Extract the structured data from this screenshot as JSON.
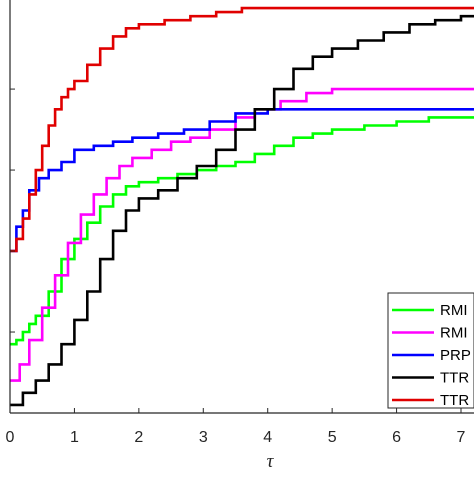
{
  "chart_data": {
    "type": "line",
    "xlabel": "τ",
    "ylabel": "",
    "title": "",
    "xlim": [
      0,
      7.3
    ],
    "ylim": [
      0,
      1.02
    ],
    "x_ticks": [
      0,
      1,
      2,
      3,
      4,
      5,
      6,
      7
    ],
    "x_tick_labels": [
      "0",
      "1",
      "2",
      "3",
      "4",
      "5",
      "6",
      "7"
    ],
    "y_ticks": [
      0.2,
      0.4,
      0.6,
      0.8
    ],
    "grid": false,
    "legend_position": "bottom-right",
    "series": [
      {
        "name": "RMI",
        "color": "#00ff00",
        "points": [
          [
            0,
            0.17
          ],
          [
            0.1,
            0.18
          ],
          [
            0.2,
            0.2
          ],
          [
            0.3,
            0.22
          ],
          [
            0.4,
            0.24
          ],
          [
            0.6,
            0.3
          ],
          [
            0.8,
            0.38
          ],
          [
            1.0,
            0.43
          ],
          [
            1.2,
            0.47
          ],
          [
            1.4,
            0.51
          ],
          [
            1.6,
            0.54
          ],
          [
            1.8,
            0.56
          ],
          [
            2.0,
            0.57
          ],
          [
            2.3,
            0.58
          ],
          [
            2.6,
            0.59
          ],
          [
            2.9,
            0.6
          ],
          [
            3.2,
            0.61
          ],
          [
            3.5,
            0.62
          ],
          [
            3.8,
            0.64
          ],
          [
            4.1,
            0.66
          ],
          [
            4.4,
            0.68
          ],
          [
            4.7,
            0.69
          ],
          [
            5.0,
            0.7
          ],
          [
            5.5,
            0.71
          ],
          [
            6.0,
            0.72
          ],
          [
            6.5,
            0.73
          ],
          [
            7.3,
            0.74
          ]
        ]
      },
      {
        "name": "RMI",
        "color": "#ff00ff",
        "points": [
          [
            0,
            0.08
          ],
          [
            0.15,
            0.12
          ],
          [
            0.3,
            0.18
          ],
          [
            0.5,
            0.26
          ],
          [
            0.7,
            0.34
          ],
          [
            0.9,
            0.42
          ],
          [
            1.1,
            0.49
          ],
          [
            1.3,
            0.54
          ],
          [
            1.5,
            0.58
          ],
          [
            1.7,
            0.61
          ],
          [
            1.9,
            0.63
          ],
          [
            2.2,
            0.65
          ],
          [
            2.5,
            0.67
          ],
          [
            2.8,
            0.68
          ],
          [
            3.1,
            0.7
          ],
          [
            3.5,
            0.73
          ],
          [
            3.8,
            0.75
          ],
          [
            4.2,
            0.77
          ],
          [
            4.6,
            0.79
          ],
          [
            5.0,
            0.8
          ],
          [
            5.5,
            0.8
          ],
          [
            6.0,
            0.8
          ],
          [
            7.3,
            0.8
          ]
        ]
      },
      {
        "name": "PRP",
        "color": "#0000ff",
        "points": [
          [
            0,
            0.4
          ],
          [
            0.1,
            0.46
          ],
          [
            0.2,
            0.5
          ],
          [
            0.3,
            0.55
          ],
          [
            0.45,
            0.58
          ],
          [
            0.6,
            0.6
          ],
          [
            0.8,
            0.62
          ],
          [
            1.0,
            0.65
          ],
          [
            1.3,
            0.66
          ],
          [
            1.6,
            0.67
          ],
          [
            1.9,
            0.68
          ],
          [
            2.3,
            0.69
          ],
          [
            2.7,
            0.7
          ],
          [
            3.1,
            0.72
          ],
          [
            3.5,
            0.74
          ],
          [
            4.0,
            0.75
          ],
          [
            5.0,
            0.75
          ],
          [
            6.0,
            0.75
          ],
          [
            7.3,
            0.75
          ]
        ]
      },
      {
        "name": "TTR",
        "color": "#000000",
        "points": [
          [
            0,
            0.02
          ],
          [
            0.2,
            0.05
          ],
          [
            0.4,
            0.08
          ],
          [
            0.6,
            0.12
          ],
          [
            0.8,
            0.17
          ],
          [
            1.0,
            0.23
          ],
          [
            1.2,
            0.3
          ],
          [
            1.4,
            0.38
          ],
          [
            1.6,
            0.45
          ],
          [
            1.8,
            0.5
          ],
          [
            2.0,
            0.53
          ],
          [
            2.3,
            0.55
          ],
          [
            2.6,
            0.58
          ],
          [
            2.9,
            0.61
          ],
          [
            3.2,
            0.65
          ],
          [
            3.5,
            0.7
          ],
          [
            3.8,
            0.75
          ],
          [
            4.1,
            0.8
          ],
          [
            4.4,
            0.85
          ],
          [
            4.7,
            0.88
          ],
          [
            5.0,
            0.9
          ],
          [
            5.4,
            0.92
          ],
          [
            5.8,
            0.94
          ],
          [
            6.2,
            0.96
          ],
          [
            6.6,
            0.97
          ],
          [
            7.0,
            0.98
          ],
          [
            7.3,
            0.99
          ]
        ]
      },
      {
        "name": "TTR",
        "color": "#e00000",
        "points": [
          [
            0,
            0.4
          ],
          [
            0.1,
            0.43
          ],
          [
            0.2,
            0.48
          ],
          [
            0.3,
            0.54
          ],
          [
            0.4,
            0.6
          ],
          [
            0.5,
            0.66
          ],
          [
            0.6,
            0.71
          ],
          [
            0.7,
            0.75
          ],
          [
            0.8,
            0.78
          ],
          [
            0.9,
            0.8
          ],
          [
            1.0,
            0.82
          ],
          [
            1.2,
            0.86
          ],
          [
            1.4,
            0.9
          ],
          [
            1.6,
            0.93
          ],
          [
            1.8,
            0.95
          ],
          [
            2.0,
            0.96
          ],
          [
            2.4,
            0.97
          ],
          [
            2.8,
            0.98
          ],
          [
            3.2,
            0.99
          ],
          [
            3.6,
            1.0
          ],
          [
            4.5,
            1.0
          ],
          [
            5.5,
            1.0
          ],
          [
            7.3,
            1.0
          ]
        ]
      }
    ]
  },
  "legend": {
    "items": [
      {
        "label": "RMI",
        "color": "#00ff00"
      },
      {
        "label": "RMI",
        "color": "#ff00ff"
      },
      {
        "label": "PRP",
        "color": "#0000ff"
      },
      {
        "label": "TTR",
        "color": "#000000"
      },
      {
        "label": "TTR",
        "color": "#e00000"
      }
    ]
  }
}
